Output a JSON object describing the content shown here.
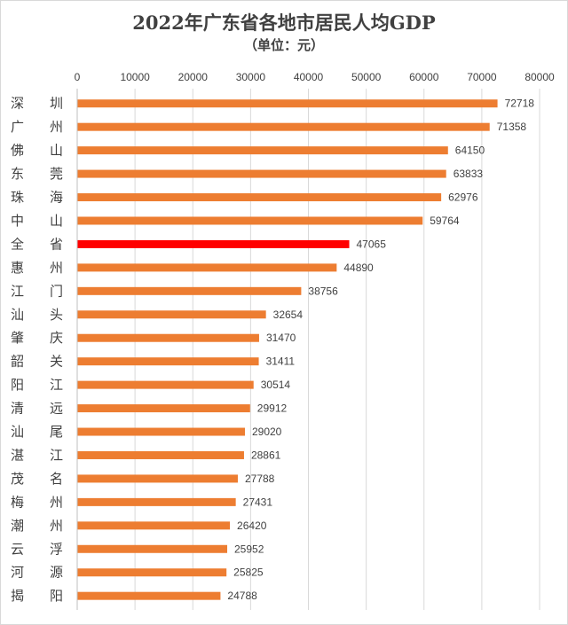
{
  "title": "2022年广东省各地市居民人均GDP",
  "subtitle": "（单位：元）",
  "chart_data": {
    "type": "bar",
    "orientation": "horizontal",
    "title": "2022年广东省各地市居民人均GDP",
    "subtitle": "（单位：元）",
    "xlim": [
      0,
      80000
    ],
    "xticks": [
      0,
      10000,
      20000,
      30000,
      40000,
      50000,
      60000,
      70000,
      80000
    ],
    "axis_position": "top",
    "grid": true,
    "legend": "none",
    "bar_color": "#ed7d31",
    "highlight_color": "#ff0000",
    "highlight_category": "全省",
    "categories": [
      "深圳",
      "广州",
      "佛山",
      "东莞",
      "珠海",
      "中山",
      "全省",
      "惠州",
      "江门",
      "汕头",
      "肇庆",
      "韶关",
      "阳江",
      "清远",
      "汕尾",
      "湛江",
      "茂名",
      "梅州",
      "潮州",
      "云浮",
      "河源",
      "揭阳"
    ],
    "values": [
      72718,
      71358,
      64150,
      63833,
      62976,
      59764,
      47065,
      44890,
      38756,
      32654,
      31470,
      31411,
      30514,
      29912,
      29020,
      28861,
      27788,
      27431,
      26420,
      25952,
      25825,
      24788
    ]
  }
}
